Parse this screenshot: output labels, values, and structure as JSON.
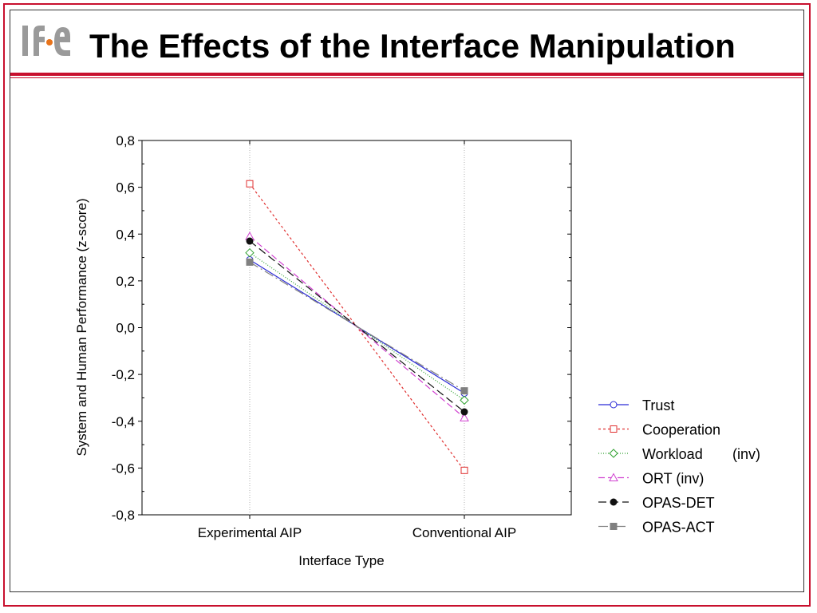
{
  "header": {
    "logo_text": "IFE",
    "title": "The Effects of the Interface Manipulation",
    "accent_color": "#c8102e"
  },
  "chart_data": {
    "type": "line",
    "categories": [
      "Experimental AIP",
      "Conventional AIP"
    ],
    "xlabel": "Interface Type",
    "ylabel": "System and Human Performance (z-score)",
    "ylim": [
      -0.8,
      0.8
    ],
    "yticks": [
      0.8,
      0.6,
      0.4,
      0.2,
      0.0,
      -0.2,
      -0.4,
      -0.6,
      -0.8
    ],
    "ytick_labels": [
      "0,8",
      "0,6",
      "0,4",
      "0,2",
      "0,0",
      "-0,2",
      "-0,4",
      "-0,6",
      "-0,8"
    ],
    "grid": "vertical",
    "legend_position": "right",
    "series": [
      {
        "name": "Trust",
        "legend_suffix": "",
        "values": [
          0.29,
          -0.28
        ],
        "color": "#2b2bd6",
        "dash": "",
        "marker": "circle",
        "filled": false
      },
      {
        "name": "Cooperation",
        "legend_suffix": "",
        "values": [
          0.615,
          -0.61
        ],
        "color": "#e03030",
        "dash": "3,3",
        "marker": "square",
        "filled": false
      },
      {
        "name": "Workload",
        "legend_suffix": "(inv)",
        "values": [
          0.32,
          -0.31
        ],
        "color": "#30a030",
        "dash": "1,2",
        "marker": "diamond",
        "filled": false
      },
      {
        "name": "ORT (inv)",
        "legend_suffix": "",
        "values": [
          0.39,
          -0.385
        ],
        "color": "#d040d0",
        "dash": "8,4",
        "marker": "triangle",
        "filled": false
      },
      {
        "name": "OPAS-DET",
        "legend_suffix": "",
        "values": [
          0.37,
          -0.36
        ],
        "color": "#111111",
        "dash": "10,5",
        "marker": "circle",
        "filled": true
      },
      {
        "name": "OPAS-ACT",
        "legend_suffix": "",
        "values": [
          0.28,
          -0.27
        ],
        "color": "#808080",
        "dash": "12,4,2,4",
        "marker": "square",
        "filled": true
      }
    ]
  }
}
